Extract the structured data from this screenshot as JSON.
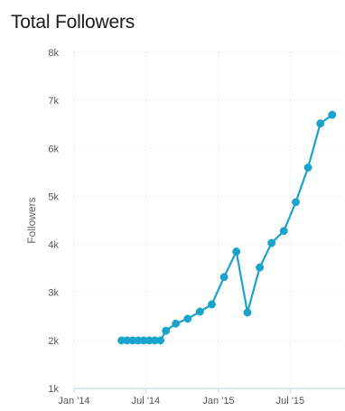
{
  "chart_data": {
    "type": "line",
    "title": "Total Followers",
    "xlabel": "",
    "ylabel": "Followers",
    "x_axis_type": "date",
    "xlim": [
      "2014-01-01",
      "2015-10-01"
    ],
    "ylim": [
      1000,
      8000
    ],
    "y_ticks": [
      {
        "value": 1000,
        "label": "1k"
      },
      {
        "value": 2000,
        "label": "2k"
      },
      {
        "value": 3000,
        "label": "3k"
      },
      {
        "value": 4000,
        "label": "4k"
      },
      {
        "value": 5000,
        "label": "5k"
      },
      {
        "value": 6000,
        "label": "6k"
      },
      {
        "value": 7000,
        "label": "7k"
      },
      {
        "value": 8000,
        "label": "8k"
      }
    ],
    "x_ticks": [
      {
        "value": "2014-01-01",
        "label": "Jan '14"
      },
      {
        "value": "2014-07-01",
        "label": "Jul '14"
      },
      {
        "value": "2015-01-01",
        "label": "Jan '15"
      },
      {
        "value": "2015-07-01",
        "label": "Jul '15"
      }
    ],
    "grid": true,
    "legend": "none",
    "series": [
      {
        "color": "#1aa3cc",
        "points": [
          {
            "x": "2014-05-01",
            "y": 2000
          },
          {
            "x": "2014-05-15",
            "y": 2000
          },
          {
            "x": "2014-05-29",
            "y": 2000
          },
          {
            "x": "2014-06-12",
            "y": 2000
          },
          {
            "x": "2014-06-26",
            "y": 2000
          },
          {
            "x": "2014-07-10",
            "y": 2000
          },
          {
            "x": "2014-07-24",
            "y": 2000
          },
          {
            "x": "2014-08-07",
            "y": 2000
          },
          {
            "x": "2014-08-21",
            "y": 2200
          },
          {
            "x": "2014-09-15",
            "y": 2350
          },
          {
            "x": "2014-10-15",
            "y": 2450
          },
          {
            "x": "2014-11-15",
            "y": 2600
          },
          {
            "x": "2014-12-15",
            "y": 2750
          },
          {
            "x": "2015-01-15",
            "y": 3320
          },
          {
            "x": "2015-02-15",
            "y": 3850
          },
          {
            "x": "2015-03-15",
            "y": 2580
          },
          {
            "x": "2015-04-15",
            "y": 3520
          },
          {
            "x": "2015-05-15",
            "y": 4030
          },
          {
            "x": "2015-06-15",
            "y": 4280
          },
          {
            "x": "2015-07-15",
            "y": 4880
          },
          {
            "x": "2015-08-15",
            "y": 5600
          },
          {
            "x": "2015-09-15",
            "y": 6520
          },
          {
            "x": "2015-10-15",
            "y": 6700
          }
        ]
      }
    ]
  }
}
